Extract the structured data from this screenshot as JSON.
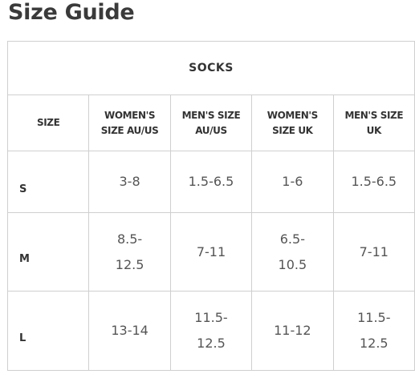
{
  "title": "Size Guide",
  "table": {
    "caption": "SOCKS",
    "header": [
      "SIZE",
      "WOMEN'S SIZE AU/US",
      "MEN'S SIZE AU/US",
      "WOMEN'S SIZE UK",
      "MEN'S SIZE UK"
    ],
    "rows": [
      [
        "S",
        "3-8",
        "1.5-6.5",
        "1-6",
        "1.5-6.5"
      ],
      [
        "M",
        "8.5-12.5",
        "7-11",
        "6.5-10.5",
        "7-11"
      ],
      [
        "L",
        "13-14",
        "11.5-12.5",
        "11-12",
        "11.5-12.5"
      ]
    ]
  }
}
